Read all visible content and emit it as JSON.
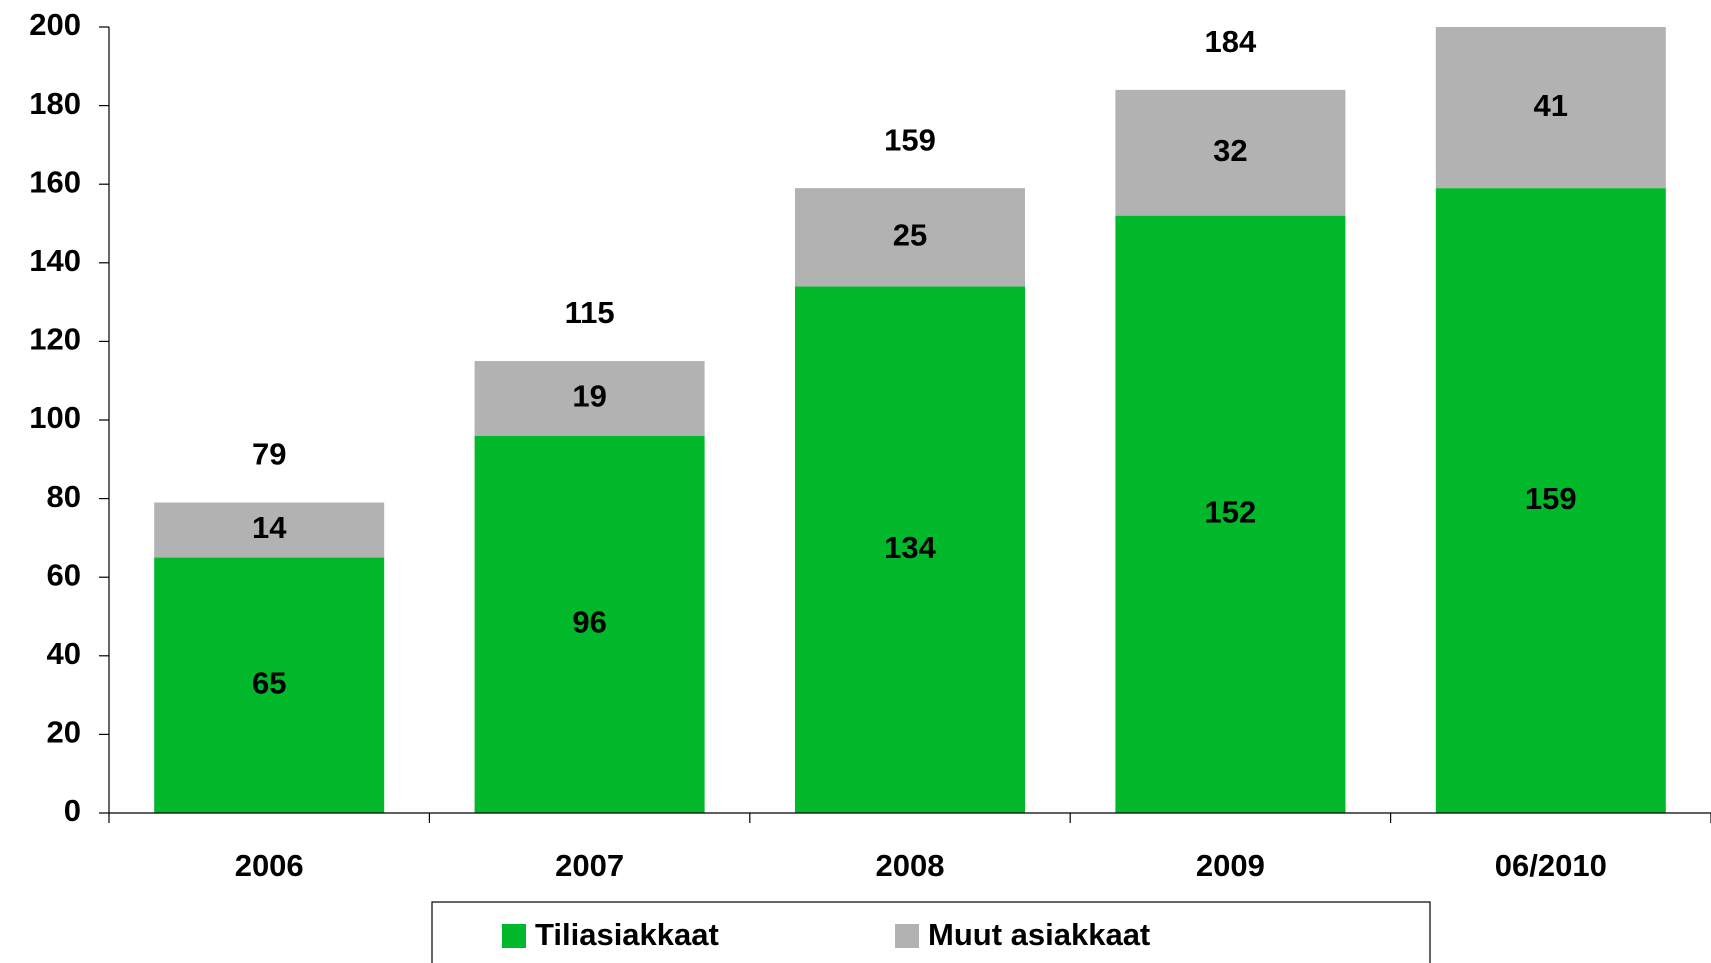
{
  "chart_data": {
    "type": "stacked_bar",
    "categories": [
      "2006",
      "2007",
      "2008",
      "2009",
      "06/2010"
    ],
    "series": [
      {
        "name": "Tiliasiakkaat",
        "color": "#00b82a",
        "values": [
          65,
          96,
          134,
          152,
          159
        ]
      },
      {
        "name": "Muut asiakkaat",
        "color": "#b2b2b2",
        "values": [
          14,
          19,
          25,
          32,
          41
        ]
      }
    ],
    "totals": [
      79,
      115,
      159,
      184,
      null
    ],
    "ylim": [
      0,
      200
    ],
    "yticks": [
      0,
      20,
      40,
      60,
      80,
      100,
      120,
      140,
      160,
      180,
      200
    ],
    "grid": false,
    "legend": "bottom"
  }
}
